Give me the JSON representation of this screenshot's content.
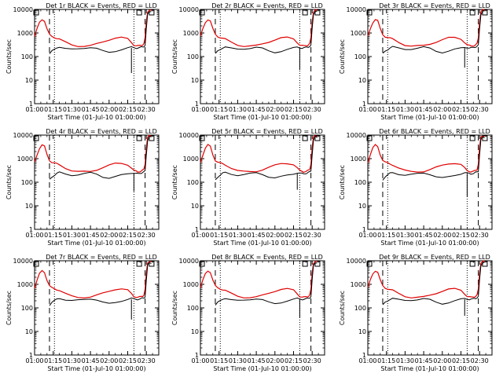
{
  "panels": [
    {
      "title": "Det 1r BLACK = Events, RED = LLD",
      "variant": 0
    },
    {
      "title": "Det 2r BLACK = Events, RED = LLD",
      "variant": 1
    },
    {
      "title": "Det 3r BLACK = Events, RED = LLD",
      "variant": 2
    },
    {
      "title": "Det 4r BLACK = Events, RED = LLD",
      "variant": 3
    },
    {
      "title": "Det 5r BLACK = Events, RED = LLD",
      "variant": 4
    },
    {
      "title": "Det 6r BLACK = Events, RED = LLD",
      "variant": 5
    },
    {
      "title": "Det 7r BLACK = Events, RED = LLD",
      "variant": 6
    },
    {
      "title": "Det 8r BLACK = Events, RED = LLD",
      "variant": 7
    },
    {
      "title": "Det 9r BLACK = Events, RED = LLD",
      "variant": 8
    }
  ],
  "chart_data": {
    "type": "line",
    "layout": "3x3 grid of detector panels",
    "xlabel": "Start Time (01-Jul-10 01:00:00)",
    "ylabel": "Counts/sec",
    "yscale": "log",
    "ylim": [
      1,
      10000
    ],
    "ytick_values": [
      1,
      10,
      100,
      1000,
      10000
    ],
    "ytick_labels": [
      "1",
      "10",
      "100",
      "1000",
      "10000"
    ],
    "xlim_minutes": [
      0,
      100
    ],
    "xtick_minutes": [
      0,
      15,
      30,
      45,
      60,
      75,
      90
    ],
    "xtick_labels": [
      "01:00",
      "01:15",
      "01:30",
      "01:45",
      "02:00",
      "02:15",
      "02:30"
    ],
    "dashed_markers_minutes": [
      12,
      89
    ],
    "dotted_markers_minutes": [
      16,
      80
    ],
    "box_markers_minutes": [
      0,
      83,
      93
    ],
    "series": [
      {
        "name": "LLD",
        "color": "#e00000",
        "x_minutes": [
          0,
          2,
          4,
          6,
          8,
          10,
          12,
          14,
          16,
          18,
          20,
          25,
          30,
          35,
          40,
          45,
          50,
          55,
          60,
          65,
          70,
          75,
          78,
          80,
          82,
          83,
          85,
          86,
          87,
          88,
          89,
          90,
          91,
          92,
          93,
          94
        ],
        "values": [
          700,
          1500,
          2800,
          3800,
          3300,
          1500,
          850,
          700,
          650,
          600,
          550,
          400,
          310,
          280,
          280,
          290,
          340,
          420,
          520,
          620,
          640,
          560,
          400,
          310,
          290,
          280,
          290,
          300,
          320,
          350,
          600,
          3000,
          8000,
          9000,
          9500,
          9000
        ]
      },
      {
        "name": "Events",
        "color": "#000000",
        "x_minutes": [
          12,
          14,
          16,
          18,
          20,
          25,
          30,
          35,
          40,
          45,
          50,
          55,
          60,
          65,
          70,
          75,
          78,
          80,
          82,
          83,
          85,
          86,
          87,
          88,
          89,
          90,
          91,
          92,
          93,
          94
        ],
        "values": [
          130,
          170,
          200,
          240,
          260,
          220,
          200,
          210,
          230,
          250,
          220,
          170,
          150,
          170,
          200,
          230,
          250,
          240,
          230,
          230,
          240,
          250,
          260,
          270,
          300,
          1500,
          6000,
          8000,
          8500,
          8000
        ]
      }
    ]
  }
}
